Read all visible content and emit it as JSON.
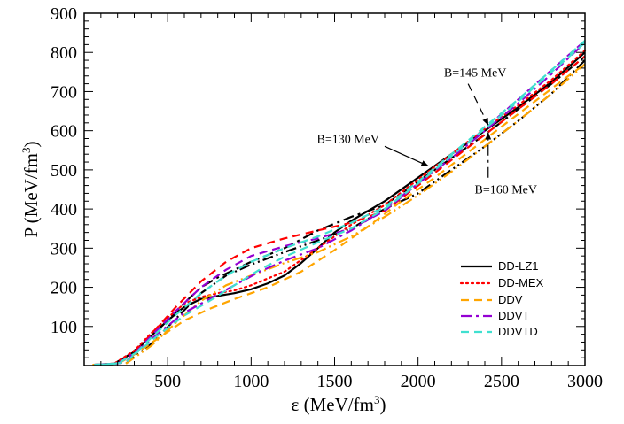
{
  "chart_data": {
    "type": "line",
    "title": "",
    "xlabel": "ε (MeV/fm",
    "xlabel_sup": "3",
    "xlabel_close": ")",
    "ylabel": "P (MeV/fm",
    "ylabel_sup": "3",
    "ylabel_close": ")",
    "xlim": [
      0,
      3000
    ],
    "ylim": [
      0,
      900
    ],
    "x_ticks": [
      500,
      1000,
      1500,
      2000,
      2500,
      3000
    ],
    "y_ticks": [
      100,
      200,
      300,
      400,
      500,
      600,
      700,
      800,
      900
    ],
    "x_tick_labels": [
      "500",
      "1000",
      "1500",
      "2000",
      "2500",
      "3000"
    ],
    "y_tick_labels": [
      "100",
      "200",
      "300",
      "400",
      "500",
      "600",
      "700",
      "800",
      "900"
    ],
    "grid": false,
    "legend_position": "bottom-right",
    "series": [
      {
        "name": "DD-LZ1",
        "color": "#000000",
        "dash": "solid",
        "group": "B=145 MeV",
        "points": [
          [
            60,
            2
          ],
          [
            180,
            5
          ],
          [
            300,
            35
          ],
          [
            400,
            75
          ],
          [
            500,
            115
          ],
          [
            600,
            150
          ],
          [
            700,
            170
          ],
          [
            800,
            178
          ],
          [
            900,
            185
          ],
          [
            1000,
            195
          ],
          [
            1100,
            210
          ],
          [
            1200,
            230
          ],
          [
            1300,
            262
          ],
          [
            1400,
            300
          ],
          [
            1500,
            340
          ],
          [
            1600,
            370
          ],
          [
            1700,
            395
          ],
          [
            1800,
            420
          ],
          [
            2000,
            480
          ],
          [
            2200,
            540
          ],
          [
            2400,
            600
          ],
          [
            2600,
            660
          ],
          [
            2800,
            725
          ],
          [
            3000,
            800
          ]
        ]
      },
      {
        "name": "DD-LZ1",
        "color": "#000000",
        "dash": "dashdot",
        "group": "B=130 MeV",
        "points": [
          [
            100,
            2
          ],
          [
            200,
            5
          ],
          [
            350,
            55
          ],
          [
            500,
            115
          ],
          [
            600,
            160
          ],
          [
            700,
            200
          ],
          [
            800,
            225
          ],
          [
            900,
            245
          ],
          [
            1000,
            265
          ],
          [
            1200,
            300
          ],
          [
            1400,
            345
          ],
          [
            1600,
            380
          ],
          [
            1800,
            410
          ],
          [
            2000,
            470
          ],
          [
            2200,
            530
          ],
          [
            2400,
            590
          ],
          [
            2600,
            655
          ],
          [
            2800,
            720
          ],
          [
            3000,
            790
          ]
        ]
      },
      {
        "name": "DD-LZ1",
        "color": "#000000",
        "dash": "dashdotdot",
        "group": "B=160 MeV",
        "points": [
          [
            250,
            5
          ],
          [
            400,
            55
          ],
          [
            550,
            120
          ],
          [
            700,
            185
          ],
          [
            850,
            230
          ],
          [
            1000,
            258
          ],
          [
            1200,
            290
          ],
          [
            1400,
            320
          ],
          [
            1600,
            350
          ],
          [
            1800,
            400
          ],
          [
            2000,
            440
          ],
          [
            2200,
            500
          ],
          [
            2400,
            560
          ],
          [
            2600,
            625
          ],
          [
            2800,
            695
          ],
          [
            3000,
            780
          ]
        ]
      },
      {
        "name": "DD-MEX",
        "color": "#ff0000",
        "dash": "dotted",
        "group": "B=145 MeV",
        "points": [
          [
            60,
            2
          ],
          [
            180,
            5
          ],
          [
            300,
            38
          ],
          [
            400,
            82
          ],
          [
            500,
            122
          ],
          [
            600,
            158
          ],
          [
            700,
            175
          ],
          [
            800,
            185
          ],
          [
            900,
            192
          ],
          [
            1000,
            205
          ],
          [
            1200,
            240
          ],
          [
            1400,
            300
          ],
          [
            1600,
            360
          ],
          [
            1800,
            410
          ],
          [
            2000,
            475
          ],
          [
            2200,
            540
          ],
          [
            2400,
            605
          ],
          [
            2600,
            665
          ],
          [
            2800,
            730
          ],
          [
            3000,
            805
          ]
        ]
      },
      {
        "name": "DD-MEX",
        "color": "#ff0000",
        "dash": "dashed",
        "group": "B=130 MeV",
        "points": [
          [
            100,
            2
          ],
          [
            250,
            8
          ],
          [
            400,
            80
          ],
          [
            550,
            150
          ],
          [
            700,
            215
          ],
          [
            850,
            265
          ],
          [
            1000,
            300
          ],
          [
            1200,
            325
          ],
          [
            1400,
            345
          ],
          [
            1600,
            365
          ],
          [
            1800,
            395
          ],
          [
            2000,
            460
          ],
          [
            2200,
            525
          ],
          [
            2400,
            590
          ],
          [
            2600,
            655
          ],
          [
            2800,
            720
          ],
          [
            3000,
            790
          ]
        ]
      },
      {
        "name": "DDV",
        "color": "#ffa500",
        "dash": "dashed",
        "group": "B=145 MeV",
        "points": [
          [
            50,
            2
          ],
          [
            200,
            4
          ],
          [
            300,
            28
          ],
          [
            450,
            72
          ],
          [
            600,
            115
          ],
          [
            750,
            145
          ],
          [
            900,
            170
          ],
          [
            1100,
            200
          ],
          [
            1300,
            240
          ],
          [
            1500,
            295
          ],
          [
            1700,
            355
          ],
          [
            1900,
            420
          ],
          [
            2100,
            480
          ],
          [
            2300,
            545
          ],
          [
            2500,
            610
          ],
          [
            2700,
            675
          ],
          [
            2900,
            740
          ],
          [
            3000,
            770
          ]
        ]
      },
      {
        "name": "DDV",
        "color": "#ffa500",
        "dash": "dashdotdot",
        "group": "B=160 MeV",
        "points": [
          [
            250,
            5
          ],
          [
            400,
            50
          ],
          [
            550,
            110
          ],
          [
            700,
            165
          ],
          [
            850,
            205
          ],
          [
            1000,
            230
          ],
          [
            1200,
            262
          ],
          [
            1400,
            290
          ],
          [
            1600,
            330
          ],
          [
            1800,
            380
          ],
          [
            2000,
            435
          ],
          [
            2200,
            495
          ],
          [
            2400,
            560
          ],
          [
            2600,
            625
          ],
          [
            2800,
            695
          ],
          [
            3000,
            770
          ]
        ]
      },
      {
        "name": "DDVT",
        "color": "#9400d3",
        "dash": "dashdot",
        "group": "B=145 MeV",
        "points": [
          [
            60,
            2
          ],
          [
            200,
            5
          ],
          [
            320,
            38
          ],
          [
            450,
            85
          ],
          [
            600,
            135
          ],
          [
            750,
            170
          ],
          [
            900,
            205
          ],
          [
            1050,
            240
          ],
          [
            1200,
            268
          ],
          [
            1400,
            300
          ],
          [
            1600,
            345
          ],
          [
            1800,
            400
          ],
          [
            2000,
            465
          ],
          [
            2200,
            530
          ],
          [
            2400,
            600
          ],
          [
            2600,
            670
          ],
          [
            2800,
            745
          ],
          [
            3000,
            825
          ]
        ]
      },
      {
        "name": "DDVT",
        "color": "#9400d3",
        "dash": "dashed",
        "group": "B=130 MeV",
        "points": [
          [
            100,
            2
          ],
          [
            250,
            8
          ],
          [
            400,
            75
          ],
          [
            550,
            140
          ],
          [
            700,
            200
          ],
          [
            850,
            245
          ],
          [
            1000,
            280
          ],
          [
            1200,
            305
          ],
          [
            1400,
            325
          ],
          [
            1600,
            350
          ],
          [
            1800,
            395
          ],
          [
            2000,
            465
          ],
          [
            2200,
            535
          ],
          [
            2400,
            605
          ],
          [
            2600,
            680
          ],
          [
            2800,
            755
          ],
          [
            3000,
            830
          ]
        ]
      },
      {
        "name": "DDVTD",
        "color": "#40e0d0",
        "dash": "dashed",
        "group": "B=145 MeV",
        "points": [
          [
            60,
            2
          ],
          [
            200,
            5
          ],
          [
            320,
            35
          ],
          [
            450,
            80
          ],
          [
            600,
            128
          ],
          [
            750,
            165
          ],
          [
            900,
            205
          ],
          [
            1050,
            245
          ],
          [
            1200,
            278
          ],
          [
            1400,
            315
          ],
          [
            1600,
            350
          ],
          [
            1800,
            400
          ],
          [
            2000,
            465
          ],
          [
            2200,
            535
          ],
          [
            2400,
            605
          ],
          [
            2600,
            675
          ],
          [
            2800,
            750
          ],
          [
            3000,
            825
          ]
        ]
      },
      {
        "name": "DDVTD",
        "color": "#40e0d0",
        "dash": "dashed",
        "group": "B=130 MeV",
        "points": [
          [
            100,
            2
          ],
          [
            250,
            8
          ],
          [
            400,
            70
          ],
          [
            550,
            130
          ],
          [
            700,
            185
          ],
          [
            850,
            230
          ],
          [
            1000,
            265
          ],
          [
            1200,
            300
          ],
          [
            1400,
            330
          ],
          [
            1600,
            365
          ],
          [
            1800,
            405
          ],
          [
            2000,
            470
          ],
          [
            2200,
            540
          ],
          [
            2400,
            610
          ],
          [
            2600,
            680
          ],
          [
            2800,
            755
          ],
          [
            3000,
            830
          ]
        ]
      }
    ],
    "legend": [
      {
        "label": "DD-LZ1",
        "color": "#000000",
        "dash": "solid"
      },
      {
        "label": "DD-MEX",
        "color": "#ff0000",
        "dash": "dotted"
      },
      {
        "label": "DDV",
        "color": "#ffa500",
        "dash": "dashed"
      },
      {
        "label": "DDVT",
        "color": "#9400d3",
        "dash": "dashdot"
      },
      {
        "label": "DDVTD",
        "color": "#40e0d0",
        "dash": "dashed"
      }
    ],
    "annotations": [
      {
        "text": "B=145 MeV",
        "target": [
          2420,
          615
        ],
        "anchor": [
          2300,
          720
        ],
        "arrow": "dashed"
      },
      {
        "text": "B=130 MeV",
        "target": [
          2060,
          510
        ],
        "anchor": [
          1800,
          560
        ],
        "arrow": "solid"
      },
      {
        "text": "B=160 MeV",
        "target": [
          2420,
          595
        ],
        "anchor": [
          2420,
          480
        ],
        "arrow": "dashdot"
      }
    ]
  }
}
